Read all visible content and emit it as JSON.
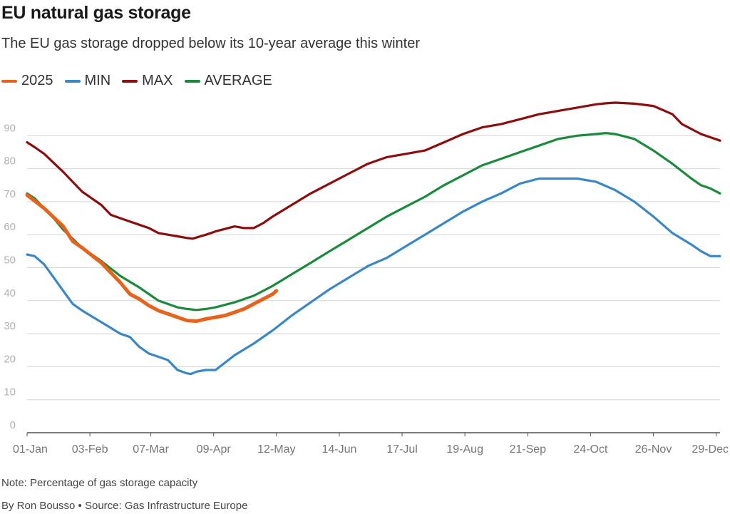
{
  "header": {
    "title": "EU natural gas storage",
    "subtitle": "The EU gas storage dropped below its 10-year average this winter"
  },
  "footer": {
    "note": "Note: Percentage of gas storage capacity",
    "byline": "By Ron Bousso • Source: Gas Infrastructure Europe"
  },
  "colors": {
    "2025": "#e8621b",
    "MIN": "#3a87c6",
    "MAX": "#8b0d0d",
    "AVERAGE": "#1a8a3c"
  },
  "chart_data": {
    "type": "line",
    "xlabel": "",
    "ylabel": "",
    "ylim": [
      0,
      100
    ],
    "yticks": [
      0,
      10,
      20,
      30,
      40,
      50,
      60,
      70,
      80,
      90
    ],
    "xlim": [
      1,
      365
    ],
    "x_tick_days": [
      1,
      34,
      66,
      99,
      132,
      165,
      198,
      231,
      264,
      297,
      330,
      363
    ],
    "x_tick_labels": [
      "01-Jan",
      "03-Feb",
      "07-Mar",
      "09-Apr",
      "12-May",
      "14-Jun",
      "17-Jul",
      "19-Aug",
      "21-Sep",
      "24-Oct",
      "26-Nov",
      "29-Dec"
    ],
    "grid": "horizontal",
    "legend_position": "top-left",
    "series": [
      {
        "name": "2025",
        "x": [
          1,
          10,
          20,
          25,
          30,
          40,
          50,
          55,
          60,
          65,
          70,
          75,
          80,
          85,
          90,
          95,
          100,
          105,
          110,
          115,
          120,
          125,
          130,
          132
        ],
        "y": [
          72,
          68,
          62.5,
          58,
          56,
          51.5,
          45.5,
          42,
          40.5,
          38.5,
          37,
          36,
          35,
          34,
          33.8,
          34.5,
          35,
          35.5,
          36.5,
          37.5,
          39,
          40.5,
          42,
          43
        ]
      },
      {
        "name": "MIN",
        "x": [
          1,
          5,
          10,
          15,
          20,
          25,
          30,
          40,
          50,
          55,
          60,
          65,
          70,
          75,
          80,
          85,
          87,
          90,
          95,
          100,
          110,
          120,
          130,
          140,
          150,
          160,
          170,
          180,
          190,
          200,
          210,
          220,
          230,
          240,
          250,
          260,
          270,
          280,
          290,
          300,
          310,
          320,
          330,
          340,
          350,
          355,
          360,
          365
        ],
        "y": [
          54,
          53.5,
          51,
          47,
          43,
          39,
          37,
          33.5,
          30,
          29,
          26,
          24,
          23,
          22,
          19,
          18,
          17.8,
          18.5,
          19,
          19,
          23.5,
          27,
          31,
          35.5,
          39.5,
          43.5,
          47,
          50.5,
          53,
          56.5,
          60,
          63.5,
          67,
          70,
          72.5,
          75.5,
          77,
          77,
          77,
          76,
          73.5,
          70,
          65.5,
          60.5,
          57,
          55,
          53.5,
          53.5
        ]
      },
      {
        "name": "MAX",
        "x": [
          1,
          5,
          10,
          20,
          30,
          40,
          45,
          50,
          60,
          65,
          70,
          75,
          80,
          85,
          88,
          92,
          95,
          100,
          110,
          115,
          120,
          125,
          130,
          140,
          150,
          160,
          170,
          180,
          190,
          200,
          210,
          220,
          230,
          240,
          250,
          260,
          270,
          280,
          290,
          300,
          305,
          310,
          320,
          330,
          340,
          345,
          350,
          355,
          360,
          365
        ],
        "y": [
          88,
          86.5,
          84.5,
          79,
          73,
          69,
          66,
          65,
          63,
          62,
          60.5,
          60,
          59.5,
          59,
          58.8,
          59.5,
          60,
          61,
          62.5,
          62,
          62,
          63.5,
          65.5,
          69,
          72.5,
          75.5,
          78.5,
          81.5,
          83.5,
          84.5,
          85.5,
          88,
          90.5,
          92.5,
          93.5,
          95,
          96.5,
          97.5,
          98.5,
          99.5,
          99.8,
          100,
          99.7,
          99,
          96.5,
          93.5,
          92,
          90.5,
          89.5,
          88.5
        ]
      },
      {
        "name": "AVERAGE",
        "x": [
          1,
          5,
          10,
          15,
          20,
          30,
          40,
          50,
          60,
          65,
          70,
          75,
          80,
          85,
          90,
          95,
          100,
          110,
          120,
          130,
          140,
          150,
          160,
          170,
          180,
          190,
          200,
          210,
          220,
          230,
          240,
          250,
          260,
          270,
          280,
          290,
          300,
          305,
          310,
          320,
          330,
          340,
          350,
          355,
          360,
          365
        ],
        "y": [
          72.5,
          71,
          68,
          65,
          61.5,
          56,
          52,
          47.5,
          44,
          42,
          40,
          39,
          38,
          37.5,
          37.2,
          37.5,
          38,
          39.5,
          41.5,
          44.5,
          48,
          51.5,
          55,
          58.5,
          62,
          65.5,
          68.5,
          71.5,
          75,
          78,
          81,
          83,
          85,
          87,
          89,
          90,
          90.5,
          90.8,
          90.5,
          89,
          85.5,
          81.5,
          77,
          75,
          74,
          72.5
        ]
      }
    ]
  }
}
